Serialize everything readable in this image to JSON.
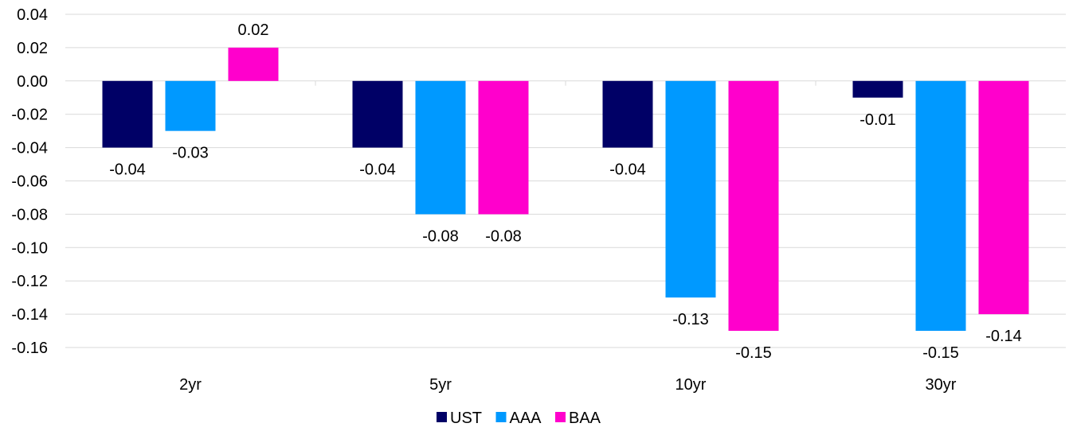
{
  "chart_data": {
    "type": "bar",
    "title": "",
    "xlabel": "",
    "ylabel": "",
    "categories": [
      "2yr",
      "5yr",
      "10yr",
      "30yr"
    ],
    "series": [
      {
        "name": "UST",
        "color": "#000066",
        "values": [
          -0.04,
          -0.04,
          -0.04,
          -0.01
        ]
      },
      {
        "name": "AAA",
        "color": "#0099ff",
        "values": [
          -0.03,
          -0.08,
          -0.13,
          -0.15
        ]
      },
      {
        "name": "BAA",
        "color": "#ff00cc",
        "values": [
          0.02,
          -0.08,
          -0.15,
          -0.14
        ]
      }
    ],
    "ylim": [
      -0.16,
      0.04
    ],
    "yticks": [
      "0.04",
      "0.02",
      "0.00",
      "-0.02",
      "-0.04",
      "-0.06",
      "-0.08",
      "-0.10",
      "-0.12",
      "-0.14",
      "-0.16"
    ],
    "ytick_values": [
      0.04,
      0.02,
      0.0,
      -0.02,
      -0.04,
      -0.06,
      -0.08,
      -0.1,
      -0.12,
      -0.14,
      -0.16
    ],
    "data_labels": [
      [
        "-0.04",
        "-0.04",
        "-0.04",
        "-0.01"
      ],
      [
        "-0.03",
        "-0.08",
        "-0.13",
        "-0.15"
      ],
      [
        "0.02",
        "-0.08",
        "-0.15",
        "-0.14"
      ]
    ],
    "grid": true,
    "legend_position": "bottom"
  }
}
